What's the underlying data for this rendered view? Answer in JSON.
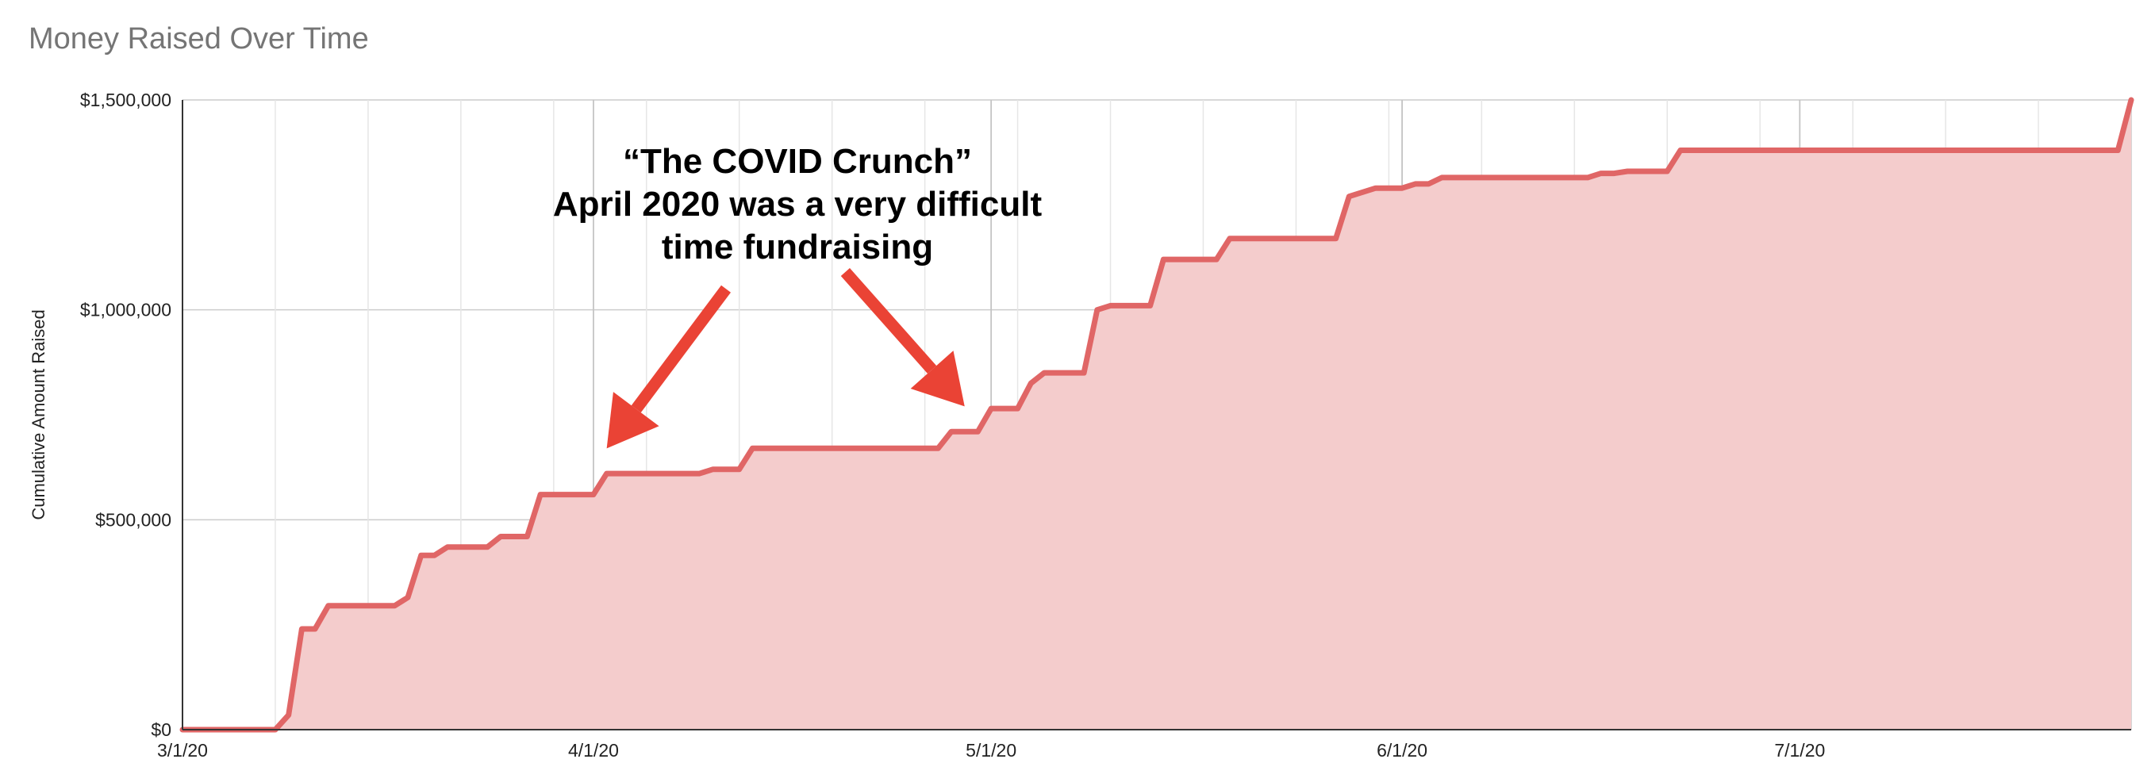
{
  "chart_data": {
    "type": "area",
    "title": "Money Raised Over Time",
    "xlabel": "",
    "ylabel": "Cumulative Amount Raised",
    "x_start": "2020-03-01",
    "x_end": "2020-07-26",
    "xlim": [
      "2020-03-01",
      "2020-07-26"
    ],
    "ylim": [
      0,
      1500000
    ],
    "y_ticks": [
      0,
      500000,
      1000000,
      1500000
    ],
    "y_tick_labels": [
      "$0",
      "$500,000",
      "$1,000,000",
      "$1,500,000"
    ],
    "x_ticks": [
      "2020-03-01",
      "2020-04-01",
      "2020-05-01",
      "2020-06-01",
      "2020-07-01"
    ],
    "x_tick_labels": [
      "3/1/20",
      "4/1/20",
      "5/1/20",
      "6/1/20",
      "7/1/20"
    ],
    "grid": true,
    "line_color": "#e06666",
    "fill_color": "#f4cccc",
    "series": [
      {
        "values": [
          [
            "2020-03-01",
            0
          ],
          [
            "2020-03-08",
            0
          ],
          [
            "2020-03-09",
            35000
          ],
          [
            "2020-03-10",
            240000
          ],
          [
            "2020-03-11",
            240000
          ],
          [
            "2020-03-12",
            295000
          ],
          [
            "2020-03-17",
            295000
          ],
          [
            "2020-03-18",
            315000
          ],
          [
            "2020-03-19",
            415000
          ],
          [
            "2020-03-20",
            415000
          ],
          [
            "2020-03-21",
            435000
          ],
          [
            "2020-03-24",
            435000
          ],
          [
            "2020-03-25",
            460000
          ],
          [
            "2020-03-27",
            460000
          ],
          [
            "2020-03-28",
            560000
          ],
          [
            "2020-04-01",
            560000
          ],
          [
            "2020-04-02",
            610000
          ],
          [
            "2020-04-09",
            610000
          ],
          [
            "2020-04-10",
            620000
          ],
          [
            "2020-04-12",
            620000
          ],
          [
            "2020-04-13",
            670000
          ],
          [
            "2020-04-27",
            670000
          ],
          [
            "2020-04-28",
            710000
          ],
          [
            "2020-04-30",
            710000
          ],
          [
            "2020-05-01",
            765000
          ],
          [
            "2020-05-03",
            765000
          ],
          [
            "2020-05-04",
            825000
          ],
          [
            "2020-05-05",
            850000
          ],
          [
            "2020-05-08",
            850000
          ],
          [
            "2020-05-09",
            1000000
          ],
          [
            "2020-05-10",
            1010000
          ],
          [
            "2020-05-13",
            1010000
          ],
          [
            "2020-05-14",
            1120000
          ],
          [
            "2020-05-18",
            1120000
          ],
          [
            "2020-05-19",
            1170000
          ],
          [
            "2020-05-27",
            1170000
          ],
          [
            "2020-05-28",
            1270000
          ],
          [
            "2020-05-30",
            1290000
          ],
          [
            "2020-06-01",
            1290000
          ],
          [
            "2020-06-02",
            1300000
          ],
          [
            "2020-06-03",
            1300000
          ],
          [
            "2020-06-04",
            1315000
          ],
          [
            "2020-06-15",
            1315000
          ],
          [
            "2020-06-16",
            1325000
          ],
          [
            "2020-06-17",
            1325000
          ],
          [
            "2020-06-18",
            1330000
          ],
          [
            "2020-06-21",
            1330000
          ],
          [
            "2020-06-22",
            1380000
          ],
          [
            "2020-07-25",
            1380000
          ],
          [
            "2020-07-26",
            1500000
          ]
        ]
      }
    ],
    "annotation": {
      "lines": [
        "“The COVID Crunch”",
        "April 2020 was a very difficult",
        "time fundraising"
      ],
      "arrow_color": "#ea4335",
      "arrows": [
        {
          "from": [
            "2020-04-11",
            1050000
          ],
          "to": [
            "2020-04-02",
            670000
          ]
        },
        {
          "from": [
            "2020-04-20",
            1090000
          ],
          "to": [
            "2020-04-29",
            770000
          ]
        }
      ]
    }
  }
}
